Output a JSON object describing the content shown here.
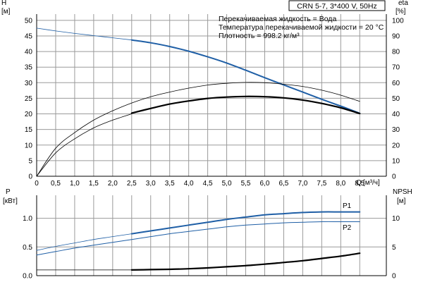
{
  "title": "CRN 5-7, 3*400 V, 50Hz",
  "annotations": [
    "Перекачиваемая жидкость = Вода",
    "Температура перекачиваемой жидкости = 20 °C",
    "Плотность = 998.2 кг/м³"
  ],
  "colors": {
    "head": "#1f5fa6",
    "efficiency": "#000000",
    "power": "#1f5fa6",
    "npsh": "#000000",
    "grid": "#9a9a9a"
  },
  "chart_data": [
    {
      "type": "line",
      "x_label": "Q",
      "x_unit": "[м³/ч]",
      "x_ticks": [
        "0",
        "0,5",
        "1,0",
        "1,5",
        "2,0",
        "2,5",
        "3,0",
        "3,5",
        "4,0",
        "4,5",
        "5,0",
        "5,5",
        "6,0",
        "6,5",
        "7,0",
        "7,5",
        "8,0",
        "8,5"
      ],
      "xlim": [
        0,
        9.2
      ],
      "y_left_label": "H",
      "y_left_unit": "[м]",
      "y_left_ticks": [
        "0",
        "5",
        "10",
        "15",
        "20",
        "25",
        "30",
        "35",
        "40",
        "45",
        "50"
      ],
      "ylim_left": [
        0,
        52
      ],
      "y_right_label": "eta",
      "y_right_unit": "[%]",
      "y_right_ticks": [
        "0",
        "10",
        "20",
        "30",
        "40",
        "50",
        "60",
        "70",
        "80",
        "90",
        "100"
      ],
      "ylim_right": [
        0,
        104
      ],
      "grid": true,
      "series": [
        {
          "axis": "left",
          "role": "head-thin",
          "x": [
            0,
            0.5,
            1.0,
            1.5,
            2.0,
            2.5
          ],
          "y": [
            47.5,
            46.6,
            45.8,
            45.1,
            44.4,
            43.7
          ]
        },
        {
          "axis": "left",
          "role": "head",
          "x": [
            2.5,
            3.0,
            3.5,
            4.0,
            4.5,
            5.0,
            5.5,
            6.0,
            6.5,
            7.0,
            7.5,
            8.0,
            8.5
          ],
          "y": [
            43.7,
            42.8,
            41.6,
            40.1,
            38.3,
            36.3,
            34.0,
            31.6,
            29.3,
            27.0,
            24.7,
            22.5,
            20.2
          ]
        },
        {
          "axis": "right",
          "role": "efficiency-thin-1",
          "x": [
            0,
            0.5,
            1.0,
            1.5,
            2.0,
            2.5,
            3.0,
            3.5,
            4.0,
            4.5,
            5.0,
            5.5,
            6.0,
            6.5,
            7.0,
            7.5,
            8.0,
            8.5
          ],
          "y": [
            0,
            18,
            28,
            36,
            42,
            47,
            51,
            54,
            56.5,
            58.5,
            59.6,
            60.2,
            60.0,
            59.0,
            57.6,
            55.2,
            52.0,
            48.0
          ]
        },
        {
          "axis": "right",
          "role": "efficiency-thin-2",
          "x": [
            0,
            0.5,
            1.0,
            1.5,
            2.0,
            2.5
          ],
          "y": [
            0,
            15,
            24,
            31,
            36,
            40
          ]
        },
        {
          "axis": "right",
          "role": "efficiency",
          "x": [
            2.5,
            3.0,
            3.5,
            4.0,
            4.5,
            5.0,
            5.5,
            6.0,
            6.5,
            7.0,
            7.5,
            8.0,
            8.5
          ],
          "y": [
            40.5,
            43.5,
            46.3,
            48.3,
            49.9,
            50.8,
            51.2,
            51.0,
            50.3,
            48.9,
            46.7,
            43.9,
            40.2
          ]
        }
      ]
    },
    {
      "type": "line",
      "x_label": "",
      "x_unit": "",
      "x_ticks": [],
      "xlim": [
        0,
        9.2
      ],
      "y_left_label": "P",
      "y_left_unit": "[кВт]",
      "y_left_ticks": [
        "0.0",
        "0.5",
        "1.0"
      ],
      "ylim_left": [
        0,
        1.4
      ],
      "y_right_label": "NPSH",
      "y_right_unit": "[м]",
      "y_right_ticks": [
        "0",
        "5",
        "10"
      ],
      "ylim_right": [
        0,
        14
      ],
      "grid": true,
      "series": [
        {
          "axis": "left",
          "name": "P1",
          "role": "p1-thin",
          "x": [
            0,
            0.5,
            1.0,
            1.5,
            2.0,
            2.5
          ],
          "y": [
            0.44,
            0.51,
            0.57,
            0.63,
            0.68,
            0.73
          ]
        },
        {
          "axis": "left",
          "name": "P1",
          "role": "p1",
          "x": [
            2.5,
            3.0,
            3.5,
            4.0,
            4.5,
            5.0,
            5.5,
            6.0,
            6.5,
            7.0,
            7.5,
            8.0,
            8.5
          ],
          "y": [
            0.73,
            0.78,
            0.83,
            0.88,
            0.93,
            0.98,
            1.02,
            1.06,
            1.08,
            1.1,
            1.11,
            1.11,
            1.11
          ]
        },
        {
          "axis": "left",
          "name": "P2",
          "role": "p2",
          "x": [
            0,
            0.5,
            1.0,
            1.5,
            2.0,
            2.5,
            3.0,
            3.5,
            4.0,
            4.5,
            5.0,
            5.5,
            6.0,
            6.5,
            7.0,
            7.5,
            8.0,
            8.5
          ],
          "y": [
            0.36,
            0.42,
            0.48,
            0.53,
            0.58,
            0.63,
            0.68,
            0.73,
            0.77,
            0.81,
            0.85,
            0.88,
            0.9,
            0.92,
            0.93,
            0.94,
            0.94,
            0.94
          ]
        },
        {
          "axis": "right",
          "role": "npsh-thin",
          "x": [
            0,
            0.5,
            1.0,
            1.5,
            2.0,
            2.5
          ],
          "y": [
            1.0,
            1.0,
            1.0,
            1.0,
            1.0,
            1.0
          ]
        },
        {
          "axis": "right",
          "role": "npsh",
          "x": [
            2.5,
            3.0,
            3.5,
            4.0,
            4.5,
            5.0,
            5.5,
            6.0,
            6.5,
            7.0,
            7.5,
            8.0,
            8.5
          ],
          "y": [
            1.0,
            1.05,
            1.1,
            1.2,
            1.35,
            1.55,
            1.75,
            2.0,
            2.3,
            2.6,
            3.0,
            3.4,
            3.9
          ]
        }
      ]
    }
  ]
}
